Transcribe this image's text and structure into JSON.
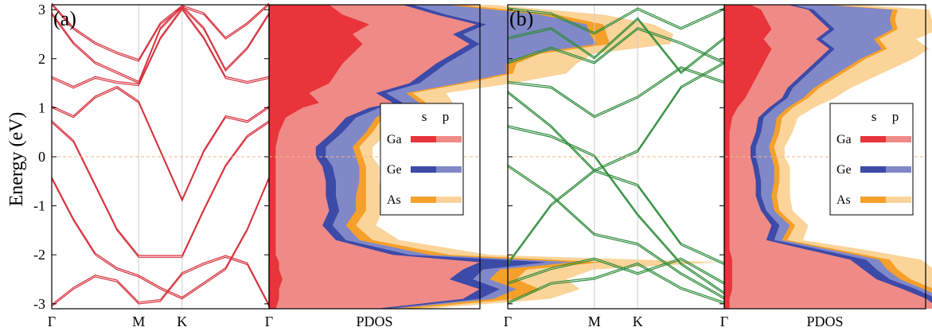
{
  "y_axis_label": "Energy (eV)",
  "colors": {
    "band_a": "#d6303c",
    "band_b": "#2e8b3a",
    "ga_s": "#e8343a",
    "ga_p": "#f08a86",
    "ge_s": "#3c4aa8",
    "ge_p": "#8088c8",
    "as_s": "#f5a02a",
    "as_p": "#fbd49a",
    "fermi": "#f3b48a",
    "gridline": "#cccccc"
  },
  "chart_data": [
    {
      "type": "line",
      "panel_label": "(a)",
      "ylim": [
        -3.1,
        3.1
      ],
      "y_ticks": [
        -3,
        -2,
        -1,
        0,
        1,
        2,
        3
      ],
      "k_labels": [
        "Γ",
        "M",
        "K",
        "Γ"
      ],
      "k_positions": [
        0,
        1,
        1.5,
        2.5
      ],
      "fermi_level": 0,
      "series": [
        {
          "x": [
            0,
            0.25,
            0.5,
            0.75,
            1,
            1.25,
            1.5,
            1.75,
            2,
            2.25,
            2.5
          ],
          "y": [
            -0.45,
            -1.3,
            -2.0,
            -2.3,
            -2.45,
            -2.7,
            -2.9,
            -2.6,
            -2.3,
            -1.5,
            -0.45
          ]
        },
        {
          "x": [
            0,
            0.25,
            0.5,
            0.75,
            1,
            1.25,
            1.5,
            1.75,
            2,
            2.25,
            2.5
          ],
          "y": [
            -3.05,
            -2.7,
            -2.45,
            -2.55,
            -3.0,
            -2.95,
            -2.4,
            -2.2,
            -2.05,
            -2.2,
            -3.05
          ]
        },
        {
          "x": [
            0,
            0.25,
            0.5,
            0.75,
            1,
            1.25,
            1.5,
            1.75,
            2,
            2.25,
            2.5
          ],
          "y": [
            0.7,
            0.3,
            -0.6,
            -1.5,
            -2.05,
            -2.05,
            -2.05,
            -1.1,
            -0.2,
            0.4,
            0.7
          ]
        },
        {
          "x": [
            0,
            0.25,
            0.5,
            0.75,
            1,
            1.25,
            1.5,
            1.75,
            2,
            2.25,
            2.5
          ],
          "y": [
            1.0,
            0.8,
            1.2,
            1.4,
            1.1,
            0.1,
            -0.9,
            0.1,
            0.8,
            0.7,
            1.0
          ]
        },
        {
          "x": [
            0,
            0.25,
            0.5,
            0.75,
            1,
            1.25,
            1.5,
            1.75,
            2,
            2.25,
            2.5
          ],
          "y": [
            1.6,
            1.4,
            1.6,
            1.5,
            1.45,
            2.4,
            3.0,
            2.4,
            1.6,
            1.5,
            1.6
          ]
        },
        {
          "x": [
            0,
            0.25,
            0.5,
            0.75,
            1,
            1.25,
            1.5,
            1.75,
            2,
            2.25,
            2.5
          ],
          "y": [
            2.9,
            2.3,
            1.9,
            1.7,
            1.5,
            2.6,
            3.05,
            2.6,
            1.75,
            2.2,
            2.9
          ]
        },
        {
          "x": [
            0,
            0.25,
            0.5,
            0.75,
            1,
            1.25,
            1.5,
            1.75,
            2,
            2.25,
            2.5
          ],
          "y": [
            3.1,
            2.6,
            2.3,
            2.1,
            1.95,
            2.7,
            3.05,
            2.9,
            2.4,
            2.7,
            3.1
          ]
        }
      ],
      "pdos": {
        "xlabel": "PDOS",
        "energy": [
          -3.1,
          -2.9,
          -2.7,
          -2.5,
          -2.3,
          -2.15,
          -2.0,
          -1.7,
          -1.4,
          -1.1,
          -0.8,
          -0.5,
          -0.2,
          0.0,
          0.2,
          0.5,
          0.8,
          1.0,
          1.1,
          1.3,
          1.5,
          1.7,
          1.9,
          2.1,
          2.3,
          2.5,
          2.7,
          2.9,
          3.1
        ],
        "ga_s": [
          0.02,
          0.03,
          0.03,
          0.04,
          0.03,
          0.03,
          0.02,
          0.02,
          0.02,
          0.02,
          0.02,
          0.02,
          0.02,
          0.02,
          0.02,
          0.03,
          0.05,
          0.1,
          0.15,
          0.12,
          0.18,
          0.2,
          0.22,
          0.25,
          0.28,
          0.25,
          0.3,
          0.22,
          0.18
        ],
        "ga_p": [
          0.3,
          0.55,
          0.6,
          0.5,
          0.55,
          0.6,
          0.35,
          0.18,
          0.14,
          0.16,
          0.15,
          0.15,
          0.14,
          0.12,
          0.12,
          0.16,
          0.18,
          0.2,
          0.22,
          0.2,
          0.24,
          0.26,
          0.28,
          0.3,
          0.32,
          0.3,
          0.32,
          0.28,
          0.22
        ],
        "ge_s": [
          0.03,
          0.05,
          0.06,
          0.07,
          0.06,
          0.2,
          0.05,
          0.03,
          0.03,
          0.03,
          0.03,
          0.03,
          0.03,
          0.03,
          0.03,
          0.03,
          0.03,
          0.03,
          0.03,
          0.03,
          0.03,
          0.03,
          0.03,
          0.03,
          0.03,
          0.03,
          0.03,
          0.03,
          0.03
        ],
        "ge_p": [
          0.02,
          0.04,
          0.05,
          0.05,
          0.05,
          0.08,
          0.06,
          0.04,
          0.04,
          0.05,
          0.06,
          0.07,
          0.08,
          0.09,
          0.08,
          0.07,
          0.06,
          0.05,
          0.05,
          0.06,
          0.12,
          0.22,
          0.18,
          0.2,
          0.35,
          0.38,
          0.3,
          0.28,
          0.1
        ],
        "as_s": [
          0.05,
          0.07,
          0.07,
          0.08,
          0.08,
          0.09,
          0.06,
          0.04,
          0.03,
          0.03,
          0.03,
          0.02,
          0.02,
          0.02,
          0.02,
          0.02,
          0.02,
          0.02,
          0.02,
          0.02,
          0.02,
          0.02,
          0.03,
          0.03,
          0.04,
          0.05,
          0.05,
          0.05,
          0.04
        ],
        "as_p": [
          0.05,
          0.1,
          0.12,
          0.15,
          0.2,
          0.35,
          0.12,
          0.08,
          0.06,
          0.05,
          0.05,
          0.04,
          0.04,
          0.03,
          0.04,
          0.05,
          0.06,
          0.08,
          0.08,
          0.1,
          0.14,
          0.16,
          0.18,
          0.16,
          0.18,
          0.2,
          0.15,
          0.14,
          0.1
        ]
      },
      "legend": {
        "columns": [
          "s",
          "p"
        ],
        "entries": [
          "Ga",
          "Ge",
          "As"
        ],
        "placement": "middle-right"
      }
    },
    {
      "type": "line",
      "panel_label": "(b)",
      "ylim": [
        -3.1,
        3.1
      ],
      "y_ticks": [
        -3,
        -2,
        -1,
        0,
        1,
        2,
        3
      ],
      "k_labels": [
        "Γ",
        "M",
        "K",
        "Γ"
      ],
      "k_positions": [
        0,
        1,
        1.5,
        2.5
      ],
      "fermi_level": 0,
      "series": [
        {
          "x": [
            0,
            0.5,
            1,
            1.5,
            2,
            2.5
          ],
          "y": [
            -3.0,
            -2.6,
            -2.5,
            -2.2,
            -2.7,
            -3.0
          ]
        },
        {
          "x": [
            0,
            0.5,
            1,
            1.5,
            2,
            2.5
          ],
          "y": [
            -2.6,
            -2.3,
            -2.1,
            -2.4,
            -2.1,
            -2.6
          ]
        },
        {
          "x": [
            0,
            0.5,
            1,
            1.5,
            2,
            2.5
          ],
          "y": [
            -2.2,
            -1.0,
            -0.3,
            -0.6,
            -1.8,
            -2.2
          ]
        },
        {
          "x": [
            0,
            0.5,
            1,
            1.5,
            2,
            2.5
          ],
          "y": [
            -0.2,
            -0.8,
            -1.6,
            -1.8,
            -2.4,
            -2.9
          ]
        },
        {
          "x": [
            0,
            0.5,
            1,
            1.5,
            2,
            2.5
          ],
          "y": [
            0.6,
            0.4,
            0.0,
            -1.2,
            -2.2,
            -2.8
          ]
        },
        {
          "x": [
            0,
            0.5,
            1,
            1.5,
            2,
            2.5
          ],
          "y": [
            1.3,
            0.6,
            -0.3,
            0.1,
            1.4,
            1.9
          ]
        },
        {
          "x": [
            0,
            0.5,
            1,
            1.5,
            2,
            2.5
          ],
          "y": [
            1.5,
            1.4,
            0.8,
            1.2,
            1.8,
            1.5
          ]
        },
        {
          "x": [
            0,
            0.5,
            1,
            1.5,
            2,
            2.5
          ],
          "y": [
            1.9,
            2.2,
            1.9,
            2.6,
            2.3,
            1.9
          ]
        },
        {
          "x": [
            0,
            0.5,
            1,
            1.5,
            2,
            2.5
          ],
          "y": [
            2.4,
            2.6,
            2.0,
            2.8,
            1.7,
            2.4
          ]
        },
        {
          "x": [
            0,
            0.5,
            1,
            1.5,
            2,
            2.5
          ],
          "y": [
            3.0,
            2.9,
            2.5,
            3.0,
            2.6,
            3.0
          ]
        }
      ],
      "pdos": {
        "xlabel": "PDOS",
        "energy": [
          -3.1,
          -2.9,
          -2.7,
          -2.5,
          -2.3,
          -2.1,
          -1.9,
          -1.7,
          -1.4,
          -1.1,
          -0.8,
          -0.5,
          -0.2,
          0.0,
          0.2,
          0.5,
          0.8,
          1.0,
          1.2,
          1.4,
          1.6,
          1.8,
          2.0,
          2.2,
          2.4,
          2.6,
          2.8,
          3.0,
          3.1
        ],
        "ga_s": [
          0.02,
          0.02,
          0.03,
          0.03,
          0.03,
          0.03,
          0.02,
          0.02,
          0.02,
          0.02,
          0.02,
          0.02,
          0.02,
          0.02,
          0.02,
          0.02,
          0.03,
          0.05,
          0.08,
          0.1,
          0.12,
          0.14,
          0.16,
          0.18,
          0.15,
          0.18,
          0.16,
          0.14,
          0.1
        ],
        "ga_p": [
          0.8,
          0.75,
          0.65,
          0.55,
          0.5,
          0.45,
          0.3,
          0.14,
          0.16,
          0.12,
          0.1,
          0.1,
          0.09,
          0.08,
          0.08,
          0.1,
          0.1,
          0.12,
          0.14,
          0.14,
          0.16,
          0.18,
          0.2,
          0.22,
          0.2,
          0.22,
          0.2,
          0.18,
          0.14
        ],
        "ge_s": [
          0.03,
          0.04,
          0.05,
          0.05,
          0.05,
          0.06,
          0.05,
          0.03,
          0.03,
          0.02,
          0.02,
          0.02,
          0.02,
          0.02,
          0.02,
          0.02,
          0.02,
          0.02,
          0.02,
          0.02,
          0.02,
          0.02,
          0.02,
          0.02,
          0.02,
          0.02,
          0.02,
          0.02,
          0.02
        ],
        "ge_p": [
          0.02,
          0.03,
          0.03,
          0.04,
          0.04,
          0.05,
          0.04,
          0.03,
          0.04,
          0.03,
          0.04,
          0.05,
          0.06,
          0.06,
          0.05,
          0.05,
          0.05,
          0.05,
          0.06,
          0.08,
          0.1,
          0.12,
          0.14,
          0.18,
          0.2,
          0.22,
          0.25,
          0.3,
          0.12
        ],
        "as_s": [
          0.03,
          0.03,
          0.04,
          0.04,
          0.04,
          0.04,
          0.03,
          0.02,
          0.02,
          0.02,
          0.02,
          0.02,
          0.02,
          0.02,
          0.02,
          0.02,
          0.02,
          0.02,
          0.02,
          0.02,
          0.02,
          0.02,
          0.02,
          0.02,
          0.02,
          0.02,
          0.02,
          0.02,
          0.02
        ],
        "as_p": [
          0.08,
          0.1,
          0.12,
          0.1,
          0.14,
          0.12,
          0.1,
          0.06,
          0.05,
          0.05,
          0.05,
          0.04,
          0.04,
          0.03,
          0.04,
          0.05,
          0.06,
          0.08,
          0.1,
          0.12,
          0.14,
          0.16,
          0.18,
          0.16,
          0.14,
          0.16,
          0.14,
          0.12,
          0.1
        ]
      },
      "legend": {
        "columns": [
          "s",
          "p"
        ],
        "entries": [
          "Ga",
          "Ge",
          "As"
        ],
        "placement": "middle-right"
      }
    }
  ]
}
